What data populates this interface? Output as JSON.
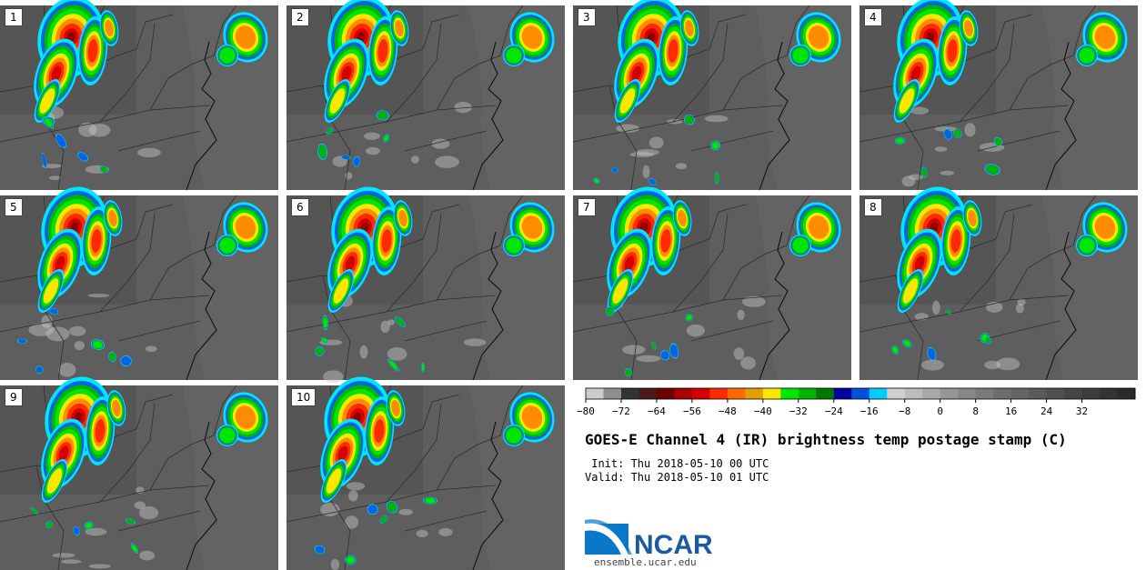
{
  "panels": [
    {
      "label": "1"
    },
    {
      "label": "2"
    },
    {
      "label": "3"
    },
    {
      "label": "4"
    },
    {
      "label": "5"
    },
    {
      "label": "6"
    },
    {
      "label": "7"
    },
    {
      "label": "8"
    },
    {
      "label": "9"
    },
    {
      "label": "10"
    }
  ],
  "colorbar": {
    "tick_labels": [
      "−80",
      "−72",
      "−64",
      "−56",
      "−48",
      "−40",
      "−32",
      "−24",
      "−16",
      "−8",
      "0",
      "8",
      "16",
      "24",
      "32"
    ],
    "colors": [
      "#cccccc",
      "#8f8f8f",
      "#333333",
      "#4d1a1a",
      "#6b0000",
      "#a80000",
      "#d40000",
      "#ff2a00",
      "#ff6a00",
      "#e0a000",
      "#ffe600",
      "#00e600",
      "#00b400",
      "#007800",
      "#0000a0",
      "#0050e0",
      "#00ccff",
      "#cfcfcf",
      "#bcbcbc",
      "#a8a8a8",
      "#969696",
      "#878787",
      "#7a7a7a",
      "#6e6e6e",
      "#646464",
      "#5a5a5a",
      "#505050",
      "#464646",
      "#3c3c3c",
      "#333333",
      "#2a2a2a"
    ]
  },
  "title": "GOES-E Channel 4 (IR) brightness temp postage stamp (C)",
  "init_line": " Init: Thu 2018-05-10 00 UTC",
  "valid_line": "Valid: Thu 2018-05-10 01 UTC",
  "logo_text": "NCAR",
  "site_url": "ensemble.ucar.edu"
}
